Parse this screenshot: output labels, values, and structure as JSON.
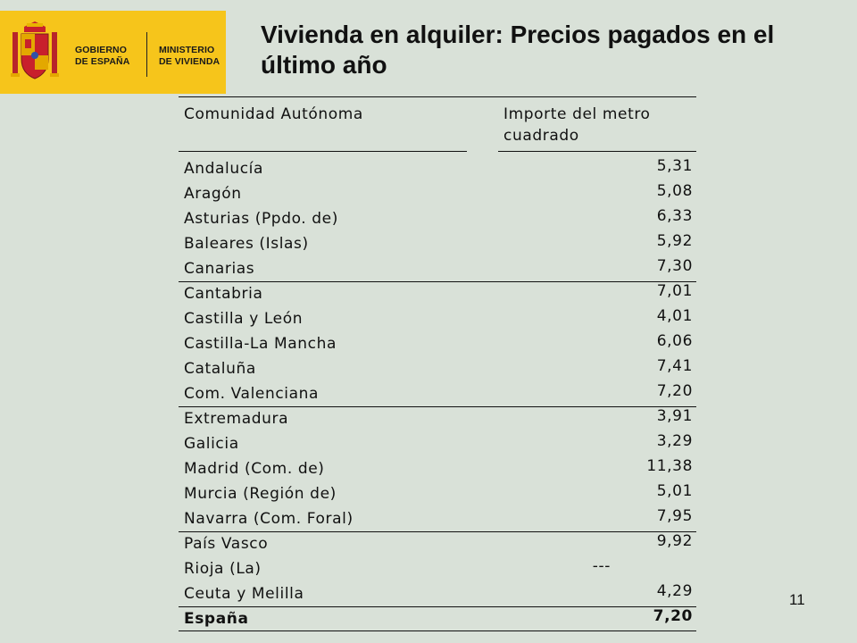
{
  "logo": {
    "line1a": "GOBIERNO",
    "line1b": "DE ESPAÑA",
    "line2a": "MINISTERIO",
    "line2b": "DE VIVIENDA",
    "brand_color": "#f6c51b"
  },
  "title": "Vivienda en alquiler: Precios pagados en el último año",
  "table": {
    "header": {
      "col1": "Comunidad Autónoma",
      "col2_line1": "Importe del metro",
      "col2_line2": "cuadrado"
    },
    "rows": [
      {
        "name": "Andalucía",
        "value": "5,31"
      },
      {
        "name": "Aragón",
        "value": "5,08"
      },
      {
        "name": "Asturias (Ppdo. de)",
        "value": "6,33"
      },
      {
        "name": "Baleares (Islas)",
        "value": "5,92"
      },
      {
        "name": "Canarias",
        "value": "7,30"
      },
      {
        "name": "Cantabria",
        "value": "7,01"
      },
      {
        "name": "Castilla y León",
        "value": "4,01"
      },
      {
        "name": "Castilla-La Mancha",
        "value": "6,06"
      },
      {
        "name": "Cataluña",
        "value": "7,41"
      },
      {
        "name": "Com. Valenciana",
        "value": "7,20"
      },
      {
        "name": "Extremadura",
        "value": "3,91"
      },
      {
        "name": "Galicia",
        "value": "3,29"
      },
      {
        "name": "Madrid (Com. de)",
        "value": "11,38"
      },
      {
        "name": "Murcia (Región de)",
        "value": "5,01"
      },
      {
        "name": "Navarra (Com. Foral)",
        "value": "7,95"
      },
      {
        "name": "País Vasco",
        "value": "9,92"
      },
      {
        "name": "Rioja (La)",
        "value": "---"
      },
      {
        "name": "Ceuta y Melilla",
        "value": "4,29"
      }
    ],
    "total": {
      "name": "España",
      "value": "7,20"
    }
  },
  "page_number": "11"
}
